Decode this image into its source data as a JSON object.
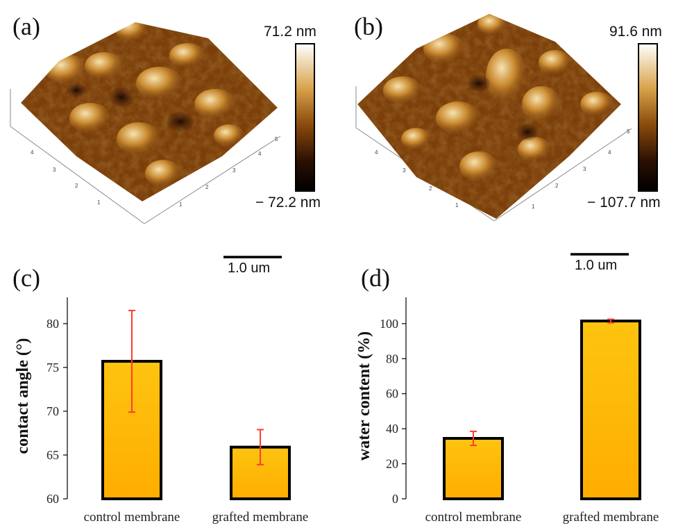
{
  "panels": {
    "a": {
      "label": "(a)",
      "colorbar_max": "71.2 nm",
      "colorbar_min": "− 72.2 nm",
      "scale_bar": "1.0 um"
    },
    "b": {
      "label": "(b)",
      "colorbar_max": "91.6 nm",
      "colorbar_min": "− 107.7 nm",
      "scale_bar": "1.0 um"
    },
    "c": {
      "label": "(c)"
    },
    "d": {
      "label": "(d)"
    }
  },
  "colors": {
    "bar_top": "#fec40f",
    "bar_bottom": "#ffad00",
    "bar_border": "#000000",
    "error_bar": "#ff3b2f",
    "afm_dark": "#2a1003",
    "afm_mid": "#9b5810",
    "afm_light": "#f0dcaa"
  },
  "chart_data": [
    {
      "type": "bar",
      "panel": "c",
      "categories": [
        "control membrane",
        "grafted membrane"
      ],
      "values": [
        75.7,
        65.9
      ],
      "errors": [
        5.8,
        2.0
      ],
      "ylabel": "contact angle (°)",
      "ylim": [
        60,
        83
      ],
      "yticks": [
        "60",
        "65",
        "70",
        "75",
        "80"
      ]
    },
    {
      "type": "bar",
      "panel": "d",
      "categories": [
        "control membrane",
        "grafted membrane"
      ],
      "values": [
        34.5,
        101.5
      ],
      "errors": [
        4.0,
        1.0
      ],
      "ylabel": "water content (%)",
      "ylim": [
        0,
        115
      ],
      "yticks": [
        "0",
        "20",
        "40",
        "60",
        "80",
        "100"
      ]
    }
  ]
}
